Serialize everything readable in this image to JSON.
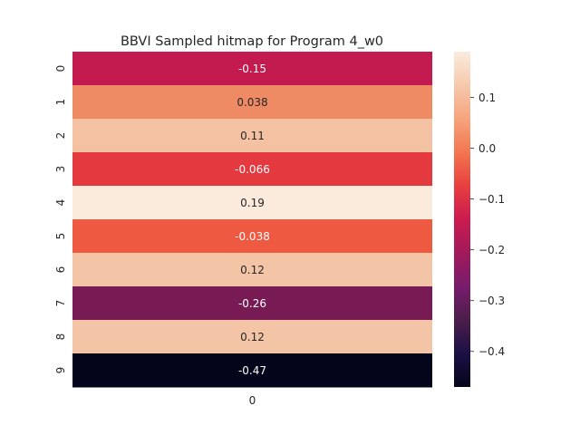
{
  "chart_data": {
    "type": "heatmap",
    "title": "BBVI Sampled hitmap for Program 4_w0",
    "rows": [
      "0",
      "1",
      "2",
      "3",
      "4",
      "5",
      "6",
      "7",
      "8",
      "9"
    ],
    "columns": [
      "0"
    ],
    "values": [
      -0.15,
      0.038,
      0.11,
      -0.066,
      0.19,
      -0.038,
      0.12,
      -0.26,
      0.12,
      -0.47
    ],
    "labels": [
      "-0.15",
      "0.038",
      "0.11",
      "-0.066",
      "0.19",
      "-0.038",
      "0.12",
      "-0.26",
      "0.12",
      "-0.47"
    ],
    "colormap": "rocket",
    "vmin": -0.47,
    "vmax": 0.19,
    "colorbar_ticks": [
      0.1,
      0.0,
      -0.1,
      -0.2,
      -0.3,
      -0.4
    ],
    "colorbar_tick_labels": [
      "0.1",
      "0.0",
      "−0.1",
      "−0.2",
      "−0.3",
      "−0.4"
    ],
    "cell_colors": [
      "#c31a4f",
      "#ef8b64",
      "#f4c1a3",
      "#e3393f",
      "#faebdd",
      "#ee5942",
      "#f4c4a6",
      "#781b54",
      "#f4c4a6",
      "#03051a"
    ]
  }
}
